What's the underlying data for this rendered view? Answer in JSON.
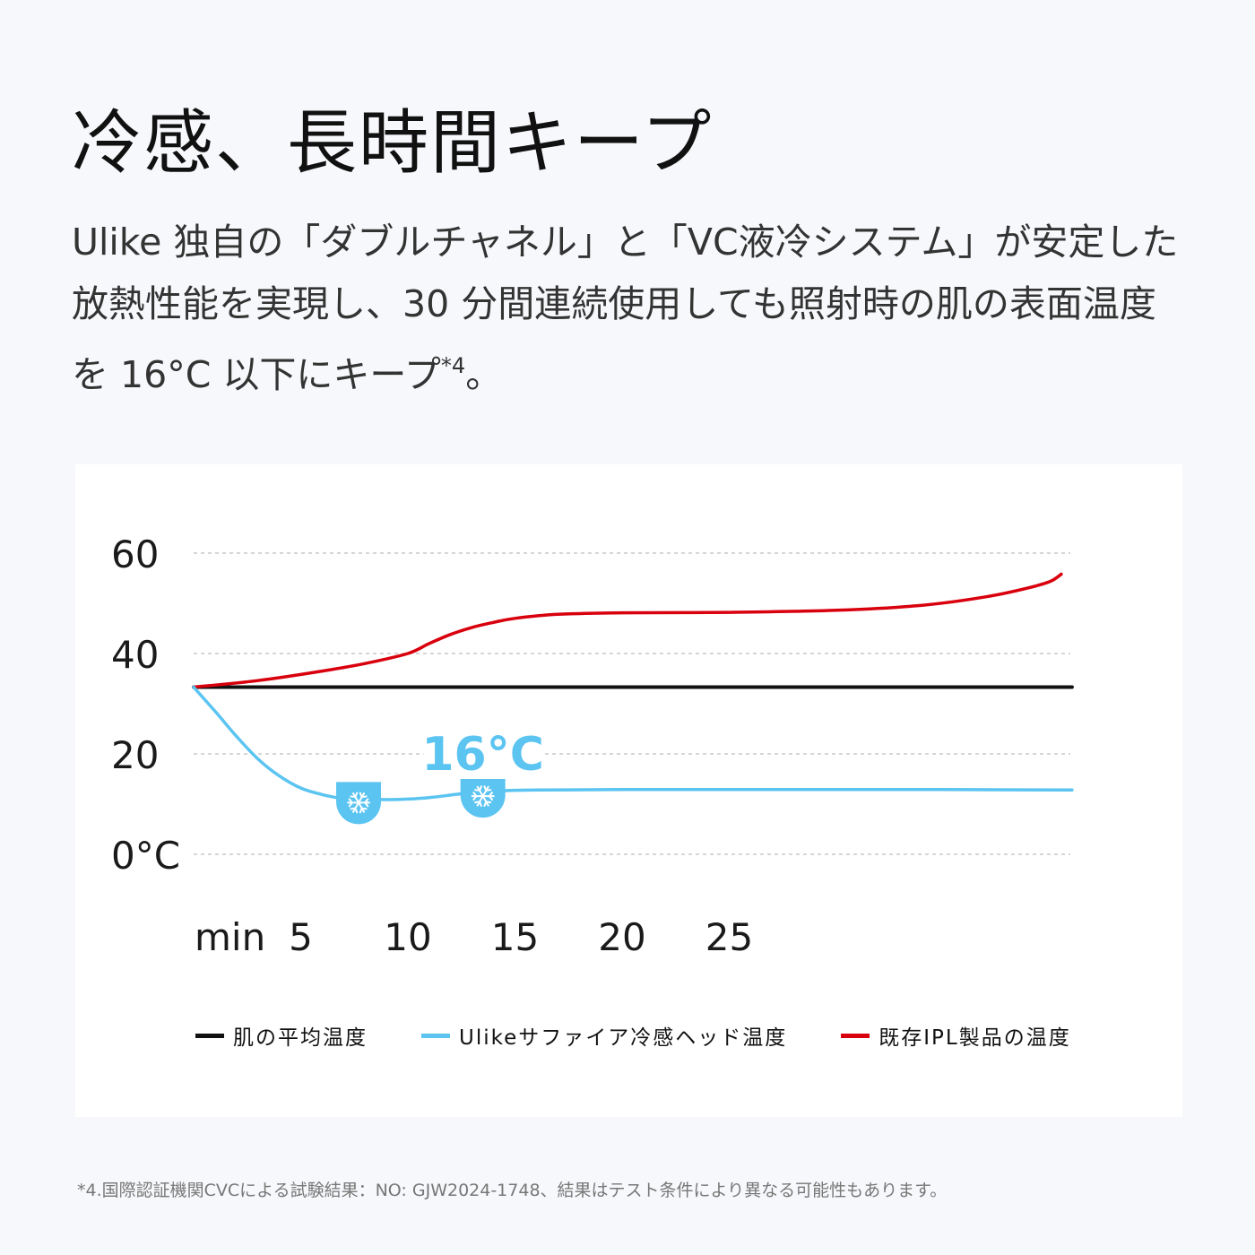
{
  "header": {
    "title": "冷感、長時間キープ",
    "description_main": "Ulike 独自の「ダブルチャネル」と「VC液冷システム」が安定した放熱性能を実現し、30 分間連続使用しても照射時の肌の表面温度を 16°C 以下にキープ",
    "description_ref": "*4",
    "description_end": "。"
  },
  "footnote": "*4.国際認証機関CVCによる試験結果：NO: GJW2024-1748、結果はテスト条件により異なる可能性もあります。",
  "colors": {
    "skin": "#111111",
    "ulike": "#5bc4f1",
    "ipl": "#d9000d",
    "grid": "#c8c8c8"
  },
  "chart_data": {
    "type": "line",
    "title": "",
    "xlabel": "min",
    "ylabel": "",
    "x_ticks": [
      "5",
      "10",
      "15",
      "20",
      "25"
    ],
    "x_tick_values": [
      5,
      10,
      15,
      20,
      25
    ],
    "y_ticks": [
      "60",
      "40",
      "20",
      "0°C"
    ],
    "y_tick_values": [
      60,
      40,
      20,
      0
    ],
    "xlim": [
      0,
      41
    ],
    "ylim": [
      0,
      60
    ],
    "grid": true,
    "legend_position": "bottom",
    "annotation": {
      "text": "16°C",
      "x": 13.5,
      "y": 20
    },
    "series": [
      {
        "name": "肌の平均温度",
        "color": "#111111",
        "x": [
          0,
          41
        ],
        "y": [
          33.3,
          33.3
        ]
      },
      {
        "name": "Ulikeサファイア冷感ヘッド温度",
        "color": "#5bc4f1",
        "x": [
          0,
          1,
          2,
          3,
          4,
          5,
          6,
          7,
          8,
          9,
          10,
          11,
          12,
          13,
          14,
          16,
          20,
          25,
          30,
          35,
          41
        ],
        "y": [
          33.3,
          28.5,
          23.5,
          19.0,
          15.6,
          13.2,
          11.9,
          11.1,
          11.0,
          10.9,
          11.0,
          11.3,
          11.8,
          12.3,
          12.6,
          12.8,
          12.9,
          12.9,
          12.9,
          12.9,
          12.8
        ],
        "markers": [
          {
            "icon": "snowflake-icon",
            "x": 7.7,
            "y": 11.0
          },
          {
            "icon": "snowflake-icon",
            "x": 13.5,
            "y": 12.3
          }
        ]
      },
      {
        "name": "既存IPL製品の温度",
        "color": "#d9000d",
        "x": [
          0,
          3,
          6,
          8,
          10,
          11,
          12,
          13,
          14,
          15,
          17,
          20,
          25,
          30,
          34,
          37,
          39,
          40,
          40.5
        ],
        "y": [
          33.3,
          34.6,
          36.5,
          38.0,
          40.0,
          42.0,
          43.8,
          45.2,
          46.2,
          47.0,
          47.8,
          48.1,
          48.2,
          48.6,
          49.6,
          51.3,
          53.1,
          54.4,
          55.8
        ]
      }
    ]
  }
}
